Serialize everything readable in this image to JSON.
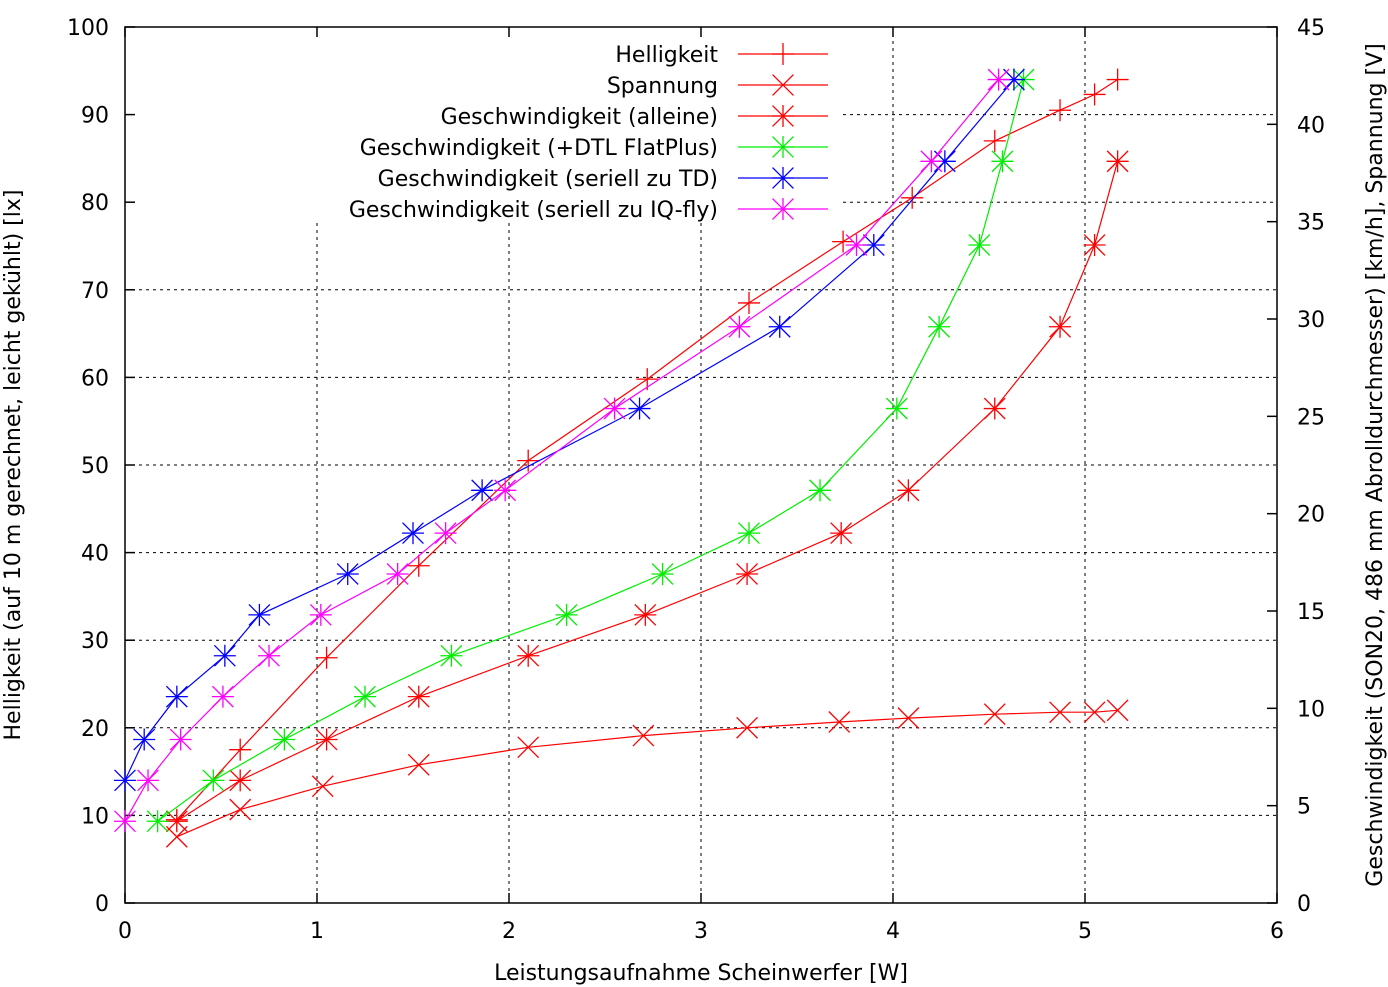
{
  "chart_data": {
    "type": "line",
    "xlabel": "Leistungsaufnahme Scheinwerfer [W]",
    "ylabel": "Helligkeit (auf 10 m gerechnet, leicht gekühlt) [lx]",
    "y2label": "Geschwindigkeit (SON20, 486 mm Abrolldurchmesser) [km/h], Spannung [V]",
    "xlim": [
      0,
      6
    ],
    "ylim": [
      0,
      100
    ],
    "y2lim": [
      0,
      45
    ],
    "xticks": [
      "0",
      "1",
      "2",
      "3",
      "4",
      "5",
      "6"
    ],
    "yticks": [
      "0",
      "10",
      "20",
      "30",
      "40",
      "50",
      "60",
      "70",
      "80",
      "90",
      "100"
    ],
    "y2ticks": [
      "0",
      "5",
      "10",
      "15",
      "20",
      "25",
      "30",
      "35",
      "40",
      "45"
    ],
    "grid": true,
    "legend_position": "top-center",
    "series": [
      {
        "name": "Helligkeit",
        "axis": "left",
        "color": "#ff0000",
        "marker": "plus",
        "points": [
          [
            0.27,
            9.5
          ],
          [
            0.6,
            17.5
          ],
          [
            1.05,
            28.0
          ],
          [
            1.53,
            38.5
          ],
          [
            2.1,
            50.5
          ],
          [
            2.72,
            59.8
          ],
          [
            3.25,
            68.5
          ],
          [
            3.74,
            75.5
          ],
          [
            4.1,
            80.5
          ],
          [
            4.53,
            87.0
          ],
          [
            4.87,
            90.5
          ],
          [
            5.05,
            92.3
          ],
          [
            5.17,
            94.0
          ]
        ]
      },
      {
        "name": "Spannung",
        "axis": "right",
        "color": "#ff0000",
        "marker": "x",
        "points": [
          [
            0.27,
            3.4
          ],
          [
            0.6,
            4.8
          ],
          [
            1.03,
            6.0
          ],
          [
            1.53,
            7.1
          ],
          [
            2.1,
            8.0
          ],
          [
            2.7,
            8.6
          ],
          [
            3.24,
            9.0
          ],
          [
            3.72,
            9.3
          ],
          [
            4.08,
            9.5
          ],
          [
            4.53,
            9.7
          ],
          [
            4.87,
            9.8
          ],
          [
            5.05,
            9.8
          ],
          [
            5.17,
            9.9
          ]
        ]
      },
      {
        "name": "Geschwindigkeit (alleine)",
        "axis": "right",
        "color": "#ff0000",
        "marker": "star",
        "points": [
          [
            0.27,
            4.2
          ],
          [
            0.6,
            6.3
          ],
          [
            1.05,
            8.4
          ],
          [
            1.53,
            10.6
          ],
          [
            2.1,
            12.7
          ],
          [
            2.71,
            14.8
          ],
          [
            3.24,
            16.9
          ],
          [
            3.73,
            19.0
          ],
          [
            4.08,
            21.2
          ],
          [
            4.53,
            25.4
          ],
          [
            4.87,
            29.6
          ],
          [
            5.05,
            33.8
          ],
          [
            5.17,
            38.1
          ]
        ]
      },
      {
        "name": "Geschwindigkeit (+DTL FlatPlus)",
        "axis": "right",
        "color": "#00ee00",
        "marker": "star",
        "points": [
          [
            0.17,
            4.2
          ],
          [
            0.46,
            6.3
          ],
          [
            0.83,
            8.4
          ],
          [
            1.25,
            10.6
          ],
          [
            1.7,
            12.7
          ],
          [
            2.3,
            14.8
          ],
          [
            2.8,
            16.9
          ],
          [
            3.25,
            19.0
          ],
          [
            3.62,
            21.2
          ],
          [
            4.02,
            25.4
          ],
          [
            4.24,
            29.6
          ],
          [
            4.45,
            33.8
          ],
          [
            4.57,
            38.1
          ],
          [
            4.68,
            42.3
          ]
        ]
      },
      {
        "name": "Geschwindigkeit (seriell zu TD)",
        "axis": "right",
        "color": "#0000ff",
        "marker": "star",
        "points": [
          [
            0.0,
            6.3
          ],
          [
            0.1,
            8.4
          ],
          [
            0.27,
            10.6
          ],
          [
            0.52,
            12.7
          ],
          [
            0.7,
            14.8
          ],
          [
            1.16,
            16.9
          ],
          [
            1.5,
            19.0
          ],
          [
            1.86,
            21.2
          ],
          [
            2.68,
            25.4
          ],
          [
            3.41,
            29.6
          ],
          [
            3.9,
            33.8
          ],
          [
            4.27,
            38.1
          ],
          [
            4.63,
            42.3
          ]
        ]
      },
      {
        "name": "Geschwindigkeit (seriell zu IQ-fly)",
        "axis": "right",
        "color": "#ff00ff",
        "marker": "star",
        "points": [
          [
            0.0,
            4.2
          ],
          [
            0.12,
            6.3
          ],
          [
            0.29,
            8.4
          ],
          [
            0.51,
            10.6
          ],
          [
            0.75,
            12.7
          ],
          [
            1.02,
            14.8
          ],
          [
            1.42,
            16.9
          ],
          [
            1.67,
            19.0
          ],
          [
            1.98,
            21.2
          ],
          [
            2.55,
            25.4
          ],
          [
            3.2,
            29.6
          ],
          [
            3.81,
            33.8
          ],
          [
            4.2,
            38.1
          ],
          [
            4.55,
            42.3
          ]
        ]
      }
    ]
  }
}
